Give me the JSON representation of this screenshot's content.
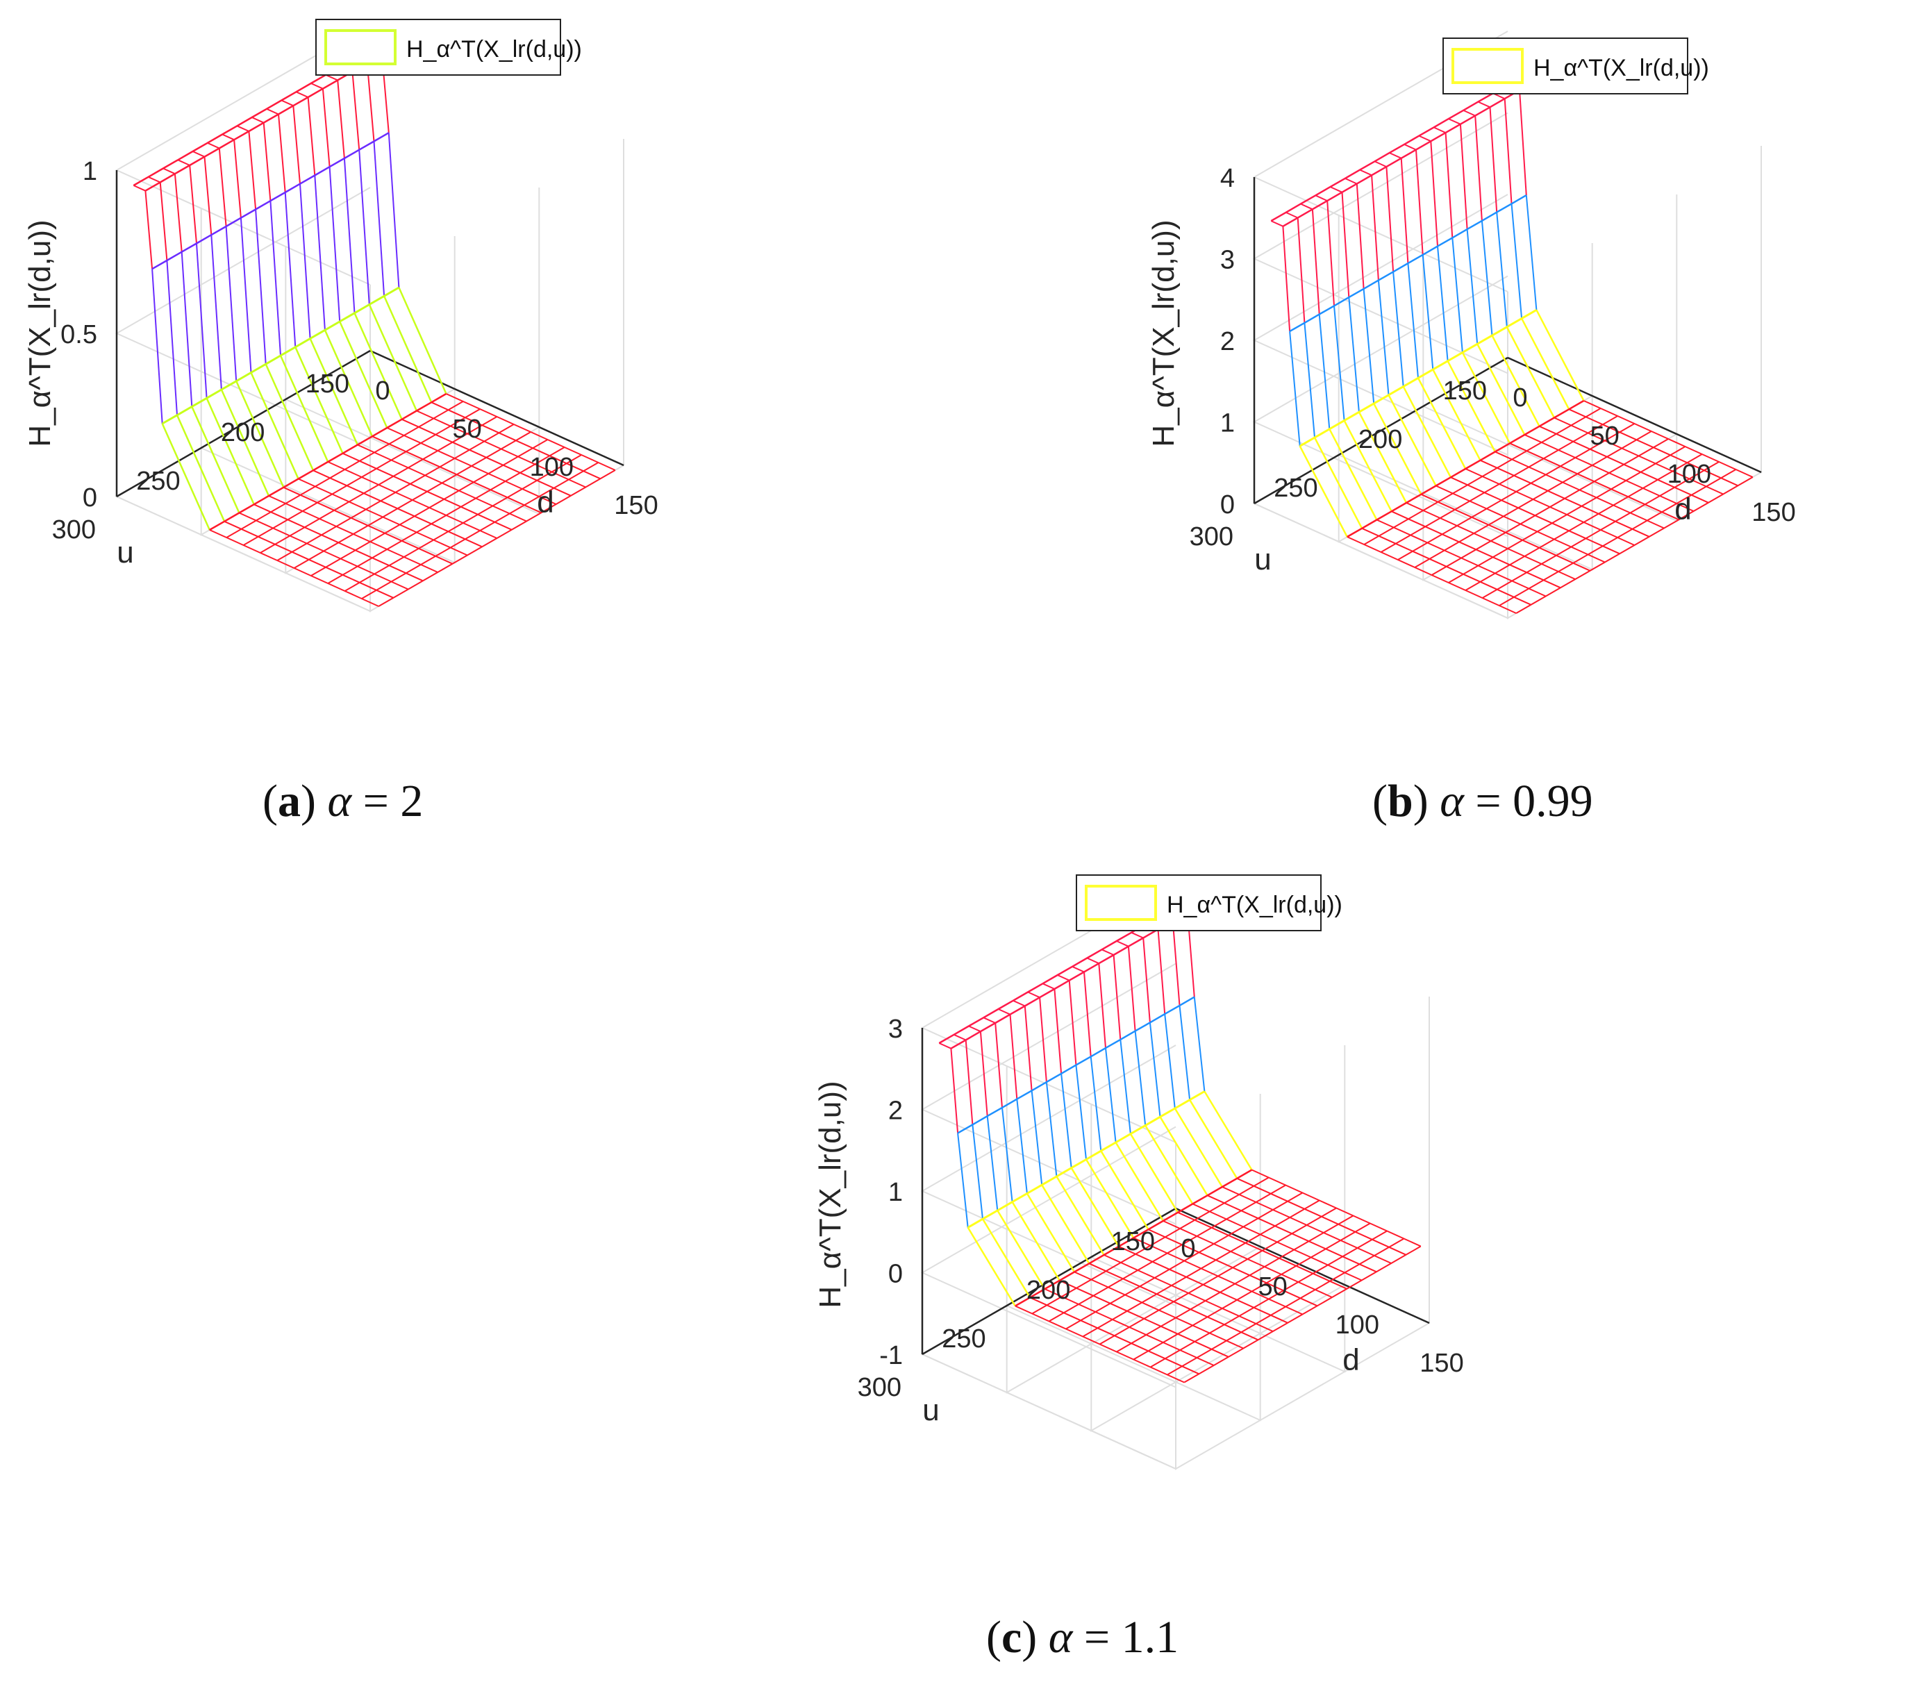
{
  "chart_data": [
    {
      "type": "surface3d",
      "panel_id": "a",
      "caption_letter": "a",
      "caption_symbol": "α",
      "caption_eq": "= 2",
      "legend": "H_α^T(X_lr(d,u))",
      "zlabel": "H_α^T(X_lr(d,u))",
      "xlabel": "d",
      "ylabel": "u",
      "xticks": [
        "0",
        "50",
        "100",
        "150"
      ],
      "yticks": [
        "150",
        "200",
        "250",
        "300"
      ],
      "zticks": [
        "0",
        "0.5",
        "1"
      ],
      "xlim": [
        0,
        150
      ],
      "ylim": [
        150,
        300
      ],
      "zlim": [
        0,
        1
      ],
      "step_d": 50,
      "top_level": 0.95,
      "mid_level": 0.72,
      "low_level": 0.26,
      "floor_level": 0,
      "colors": {
        "top": "#ff1a3c",
        "mid": "#6a2cff",
        "low": "#c8ff1a",
        "floor": "#ff1a2a",
        "legend_swatch": "#d4ff33"
      }
    },
    {
      "type": "surface3d",
      "panel_id": "b",
      "caption_letter": "b",
      "caption_symbol": "α",
      "caption_eq": "= 0.99",
      "legend": "H_α^T(X_lr(d,u))",
      "zlabel": "H_α^T(X_lr(d,u))",
      "xlabel": "d",
      "ylabel": "u",
      "xticks": [
        "0",
        "50",
        "100",
        "150"
      ],
      "yticks": [
        "150",
        "200",
        "250",
        "300"
      ],
      "zticks": [
        "0",
        "1",
        "2",
        "3",
        "4"
      ],
      "xlim": [
        0,
        150
      ],
      "ylim": [
        150,
        300
      ],
      "zlim": [
        0,
        4
      ],
      "step_d": 50,
      "top_level": 3.45,
      "mid_level": 2.2,
      "low_level": 0.85,
      "floor_level": 0,
      "colors": {
        "top": "#ff1a4a",
        "mid": "#1e90ff",
        "low": "#ffff1a",
        "floor": "#ff1a2a",
        "legend_swatch": "#ffff33"
      }
    },
    {
      "type": "surface3d",
      "panel_id": "c",
      "caption_letter": "c",
      "caption_symbol": "α",
      "caption_eq": "= 1.1",
      "legend": "H_α^T(X_lr(d,u))",
      "zlabel": "H_α^T(X_lr(d,u))",
      "xlabel": "d",
      "ylabel": "u",
      "xticks": [
        "0",
        "50",
        "100",
        "150"
      ],
      "yticks": [
        "150",
        "200",
        "250",
        "300"
      ],
      "zticks": [
        "-1",
        "0",
        "1",
        "2",
        "3"
      ],
      "xlim": [
        0,
        150
      ],
      "ylim": [
        150,
        300
      ],
      "zlim": [
        -1,
        3
      ],
      "step_d": 50,
      "top_level": 2.8,
      "mid_level": 1.8,
      "low_level": 0.7,
      "floor_level": 0,
      "colors": {
        "top": "#ff1a4a",
        "mid": "#1e90ff",
        "low": "#ffff1a",
        "floor": "#ff1a2a",
        "legend_swatch": "#ffff33"
      }
    }
  ]
}
